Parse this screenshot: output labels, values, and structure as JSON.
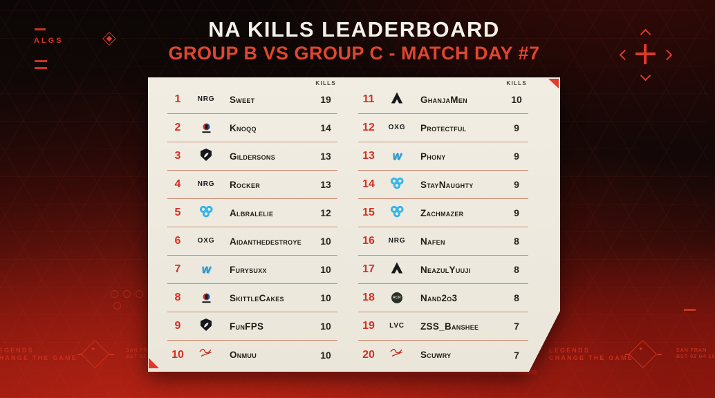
{
  "header": {
    "title": "NA KILLS LEADERBOARD",
    "subtitle": "GROUP B VS GROUP C - MATCH DAY #7"
  },
  "leaderboard": {
    "kills_header": "KILLS",
    "columns": [
      {
        "rows": [
          {
            "rank": 1,
            "team": "nrg",
            "name": "Sweet",
            "kills": 19
          },
          {
            "rank": 2,
            "team": "crest",
            "name": "Knoqq",
            "kills": 14
          },
          {
            "rank": 3,
            "team": "liquid",
            "name": "Gildersons",
            "kills": 13
          },
          {
            "rank": 4,
            "team": "nrg",
            "name": "Rocker",
            "kills": 13
          },
          {
            "rank": 5,
            "team": "c9",
            "name": "Albralelie",
            "kills": 12
          },
          {
            "rank": 6,
            "team": "oxg",
            "name": "Aidanthedestroye",
            "kills": 10
          },
          {
            "rank": 7,
            "team": "wild",
            "name": "Furysuxx",
            "kills": 10
          },
          {
            "rank": 8,
            "team": "crest",
            "name": "SkittleCakes",
            "kills": 10
          },
          {
            "rank": 9,
            "team": "liquid",
            "name": "FunFPS",
            "kills": 10
          },
          {
            "rank": 10,
            "team": "script",
            "name": "Onmuu",
            "kills": 10
          }
        ]
      },
      {
        "rows": [
          {
            "rank": 11,
            "team": "apex",
            "name": "GhanjaMen",
            "kills": 10
          },
          {
            "rank": 12,
            "team": "oxg",
            "name": "Protectful",
            "kills": 9
          },
          {
            "rank": 13,
            "team": "wild",
            "name": "Phony",
            "kills": 9
          },
          {
            "rank": 14,
            "team": "c9",
            "name": "StayNaughty",
            "kills": 9
          },
          {
            "rank": 15,
            "team": "c9",
            "name": "Zachmazer",
            "kills": 9
          },
          {
            "rank": 16,
            "team": "nrg",
            "name": "Nafen",
            "kills": 8
          },
          {
            "rank": 17,
            "team": "apex",
            "name": "NeazulYuuji",
            "kills": 8
          },
          {
            "rank": 18,
            "team": "rcr",
            "name": "Nand2o3",
            "kills": 8
          },
          {
            "rank": 19,
            "team": "lvc",
            "name": "ZSS_Banshee",
            "kills": 7
          },
          {
            "rank": 20,
            "team": "script",
            "name": "Scuwry",
            "kills": 7
          }
        ]
      }
    ]
  },
  "teams": {
    "nrg": {
      "kind": "wordmark",
      "icon": "nrg-logo",
      "label": "NRG",
      "color": "#17181c"
    },
    "crest": {
      "kind": "crest",
      "icon": "red-blue-crest-logo",
      "label": "",
      "color_left": "#c23a2f",
      "color_right": "#2c4e8f"
    },
    "liquid": {
      "kind": "shield",
      "icon": "team-liquid-logo",
      "label": "",
      "color": "#16171b"
    },
    "c9": {
      "kind": "cloud",
      "icon": "cloud9-logo",
      "label": "",
      "color": "#35b6e9"
    },
    "oxg": {
      "kind": "wordmark",
      "icon": "oxygen-esports-logo",
      "label": "OXG",
      "color": "#17181c"
    },
    "wild": {
      "kind": "w",
      "icon": "w-logo",
      "label": "W",
      "color": "#3a87c8",
      "accent": "#4ac8d8"
    },
    "apex": {
      "kind": "apex",
      "icon": "apex-predator-logo",
      "label": "",
      "color": "#17181c"
    },
    "rcr": {
      "kind": "badge",
      "icon": "rcr-badge-logo",
      "label": "RCR",
      "bg": "#2b2f27",
      "fg": "#d0d4c5"
    },
    "lvc": {
      "kind": "wordmark",
      "icon": "lvc-logo",
      "label": "LVC",
      "color": "#17181c"
    },
    "script": {
      "kind": "script",
      "icon": "red-script-logo",
      "label": "",
      "color": "#c0301f"
    }
  },
  "background": {
    "algs_label": "ALGS",
    "tagline_line1": "LEGENDS",
    "tagline_line2": "CHANGE THE GAME",
    "location_label": "SAN FRAN",
    "code_label": "BST 02 U4 16"
  },
  "colors": {
    "accent_red": "#e03a2a",
    "card_background": "#efebe1",
    "rank_red": "#d52f22",
    "divider": "#cd8a70"
  }
}
